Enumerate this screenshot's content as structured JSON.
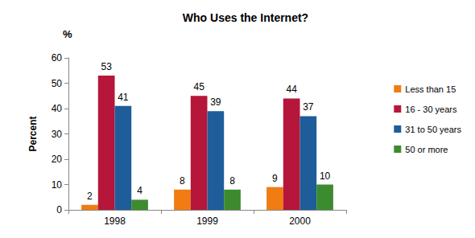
{
  "chart_data": {
    "type": "bar",
    "title": "Who Uses the Internet?",
    "y_label": "Percent",
    "annotations": [
      "%"
    ],
    "categories": [
      "1998",
      "1999",
      "2000"
    ],
    "series": [
      {
        "name": "Less than 15",
        "color": "#f07c12",
        "values": [
          2,
          8,
          9
        ]
      },
      {
        "name": "16 - 30 years",
        "color": "#b5163a",
        "values": [
          53,
          45,
          44
        ]
      },
      {
        "name": "31 to 50 years",
        "color": "#1f5d9a",
        "values": [
          41,
          39,
          37
        ]
      },
      {
        "name": "50 or more",
        "color": "#3d8b2f",
        "values": [
          4,
          8,
          10
        ]
      }
    ],
    "ylim": [
      0,
      60
    ],
    "yticks": [
      0,
      10,
      20,
      30,
      40,
      50,
      60
    ],
    "grid": false,
    "legend": "right",
    "data_labels": true
  }
}
